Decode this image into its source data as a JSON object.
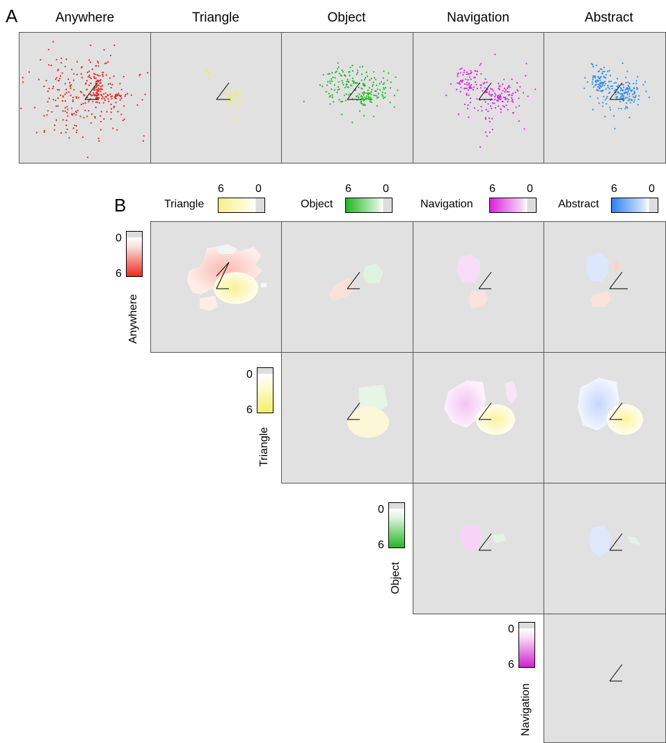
{
  "panel_a": {
    "letter": "A",
    "columns": [
      {
        "title": "Anywhere",
        "color": "#e8221a"
      },
      {
        "title": "Triangle",
        "color": "#f0ef4a"
      },
      {
        "title": "Object",
        "color": "#1fb81f"
      },
      {
        "title": "Navigation",
        "color": "#df1fdf"
      },
      {
        "title": "Abstract",
        "color": "#2f8de6"
      }
    ]
  },
  "panel_b": {
    "letter": "B",
    "colorbar_max": "6",
    "colorbar_min": "0",
    "top_colorbars": [
      {
        "label": "Triangle",
        "color": "#f4f07a"
      },
      {
        "label": "Object",
        "color": "#22b522"
      },
      {
        "label": "Navigation",
        "color": "#dd22dd"
      },
      {
        "label": "Abstract",
        "color": "#2f80ef"
      }
    ],
    "row_colorbars": [
      {
        "label": "Anywhere",
        "color": "#ee2a1e"
      },
      {
        "label": "Triangle",
        "color": "#f2ef6a"
      },
      {
        "label": "Object",
        "color": "#25b425"
      },
      {
        "label": "Navigation",
        "color": "#d022d0"
      }
    ]
  }
}
